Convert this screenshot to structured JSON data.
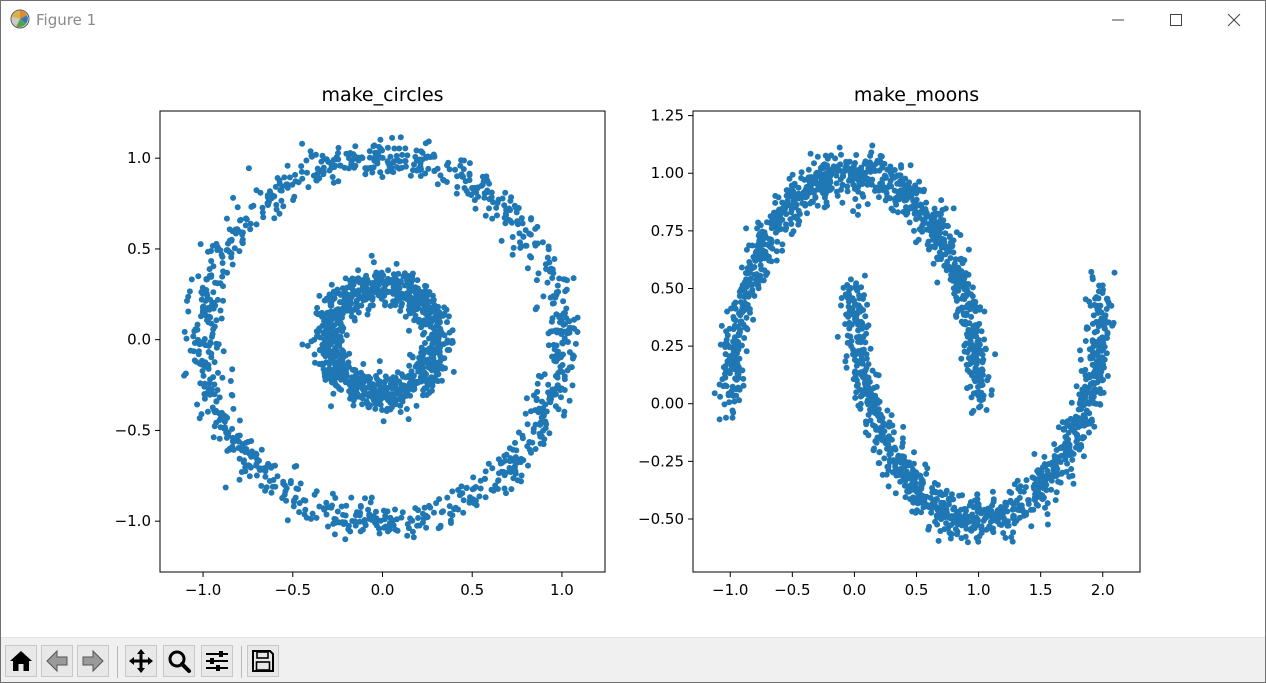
{
  "window": {
    "title": "Figure 1",
    "app_icon": "matplotlib-logo-icon",
    "controls": [
      "minimize-icon",
      "maximize-icon",
      "close-icon"
    ]
  },
  "toolbar": {
    "buttons": [
      {
        "name": "home-button",
        "icon": "home-icon"
      },
      {
        "name": "back-button",
        "icon": "back-arrow-icon"
      },
      {
        "name": "forward-button",
        "icon": "forward-arrow-icon"
      },
      {
        "name": "pan-button",
        "icon": "move-icon"
      },
      {
        "name": "zoom-button",
        "icon": "magnifier-icon"
      },
      {
        "name": "configure-subplots-button",
        "icon": "sliders-icon"
      },
      {
        "name": "save-button",
        "icon": "floppy-disk-icon"
      }
    ]
  },
  "marker_color": "#1f77b4",
  "chart_data": [
    {
      "type": "scatter",
      "title": "make_circles",
      "xlabel": "",
      "ylabel": "",
      "xlim": [
        -1.24,
        1.24
      ],
      "ylim": [
        -1.28,
        1.26
      ],
      "xticks": [
        -1.0,
        -0.5,
        0.0,
        0.5,
        1.0
      ],
      "xtick_labels": [
        "−1.0",
        "−0.5",
        "0.0",
        "0.5",
        "1.0"
      ],
      "yticks": [
        -1.0,
        -0.5,
        0.0,
        0.5,
        1.0
      ],
      "ytick_labels": [
        "−1.0",
        "−0.5",
        "0.0",
        "0.5",
        "1.0"
      ],
      "grid": false,
      "structure": "two concentric noisy rings centered at (0, 0)",
      "series": [
        {
          "values_description": "outer ring",
          "radius": 1.0,
          "noise_sd": 0.05,
          "points": 1000
        },
        {
          "values_description": "inner ring",
          "radius": 0.3,
          "noise_sd": 0.05,
          "points": 1000
        }
      ]
    },
    {
      "type": "scatter",
      "title": "make_moons",
      "xlabel": "",
      "ylabel": "",
      "xlim": [
        -1.3,
        2.3
      ],
      "ylim": [
        -0.73,
        1.27
      ],
      "xticks": [
        -1.0,
        -0.5,
        0.0,
        0.5,
        1.0,
        1.5,
        2.0
      ],
      "xtick_labels": [
        "−1.0",
        "−0.5",
        "0.0",
        "0.5",
        "1.0",
        "1.5",
        "2.0"
      ],
      "yticks": [
        -0.5,
        -0.25,
        0.0,
        0.25,
        0.5,
        0.75,
        1.0,
        1.25
      ],
      "ytick_labels": [
        "−0.50",
        "−0.25",
        "0.00",
        "0.25",
        "0.50",
        "0.75",
        "1.00",
        "1.25"
      ],
      "grid": false,
      "structure": "two interleaving noisy half-circles",
      "series": [
        {
          "values_description": "upper moon",
          "center": [
            0.0,
            0.0
          ],
          "radius": 1.0,
          "angle_range_deg": [
            0,
            180
          ],
          "noise_sd": 0.05,
          "points": 1000
        },
        {
          "values_description": "lower moon",
          "center": [
            1.0,
            0.5
          ],
          "radius": 1.0,
          "angle_range_deg": [
            180,
            360
          ],
          "noise_sd": 0.05,
          "points": 1000
        }
      ]
    }
  ]
}
